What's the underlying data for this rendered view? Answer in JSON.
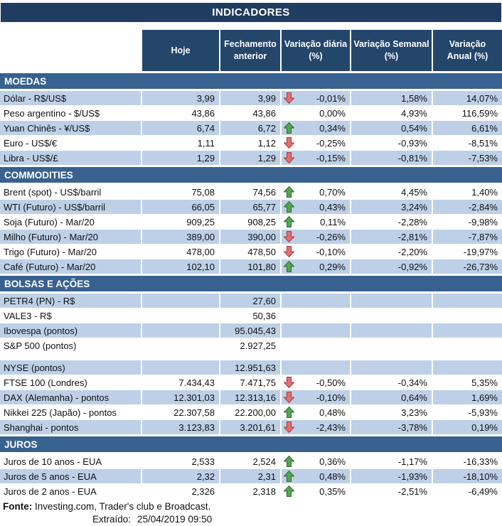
{
  "chart_data": {
    "type": "table",
    "title": "INDICADORES",
    "columns": [
      [
        "Hoje"
      ],
      [
        "Fechamento",
        "anterior"
      ],
      [
        "Variação diária",
        "(%)"
      ],
      [
        "Variação Semanal",
        "(%)"
      ],
      [
        "Variação",
        "Anual (%)"
      ]
    ],
    "sections": [
      {
        "name": "MOEDAS",
        "rows": [
          {
            "label": "Dólar - R$/US$",
            "hoje": "3,99",
            "fechamento": "3,99",
            "arrow": "down",
            "var_diaria": "-0,01%",
            "var_semanal": "1,58%",
            "var_anual": "14,07%",
            "shaded": true
          },
          {
            "label": "Peso argentino - $/US$",
            "hoje": "43,86",
            "fechamento": "43,86",
            "arrow": null,
            "var_diaria": "0,00%",
            "var_semanal": "4,93%",
            "var_anual": "116,59%",
            "shaded": false
          },
          {
            "label": "Yuan Chinês - ¥/US$",
            "hoje": "6,74",
            "fechamento": "6,72",
            "arrow": "up",
            "var_diaria": "0,34%",
            "var_semanal": "0,54%",
            "var_anual": "6,61%",
            "shaded": true
          },
          {
            "label": "Euro - US$/€",
            "hoje": "1,11",
            "fechamento": "1,12",
            "arrow": "down",
            "var_diaria": "-0,25%",
            "var_semanal": "-0,93%",
            "var_anual": "-8,51%",
            "shaded": false
          },
          {
            "label": "Libra - US$/£",
            "hoje": "1,29",
            "fechamento": "1,29",
            "arrow": "down",
            "var_diaria": "-0,15%",
            "var_semanal": "-0,81%",
            "var_anual": "-7,53%",
            "shaded": true
          }
        ]
      },
      {
        "name": "COMMODITIES",
        "rows": [
          {
            "label": "Brent (spot) - US$/barril",
            "hoje": "75,08",
            "fechamento": "74,56",
            "arrow": "up",
            "var_diaria": "0,70%",
            "var_semanal": "4,45%",
            "var_anual": "1,40%",
            "shaded": false
          },
          {
            "label": "WTI (Futuro) - US$/barril",
            "hoje": "66,05",
            "fechamento": "65,77",
            "arrow": "up",
            "var_diaria": "0,43%",
            "var_semanal": "3,24%",
            "var_anual": "-2,84%",
            "shaded": true
          },
          {
            "label": "Soja (Futuro) - Mar/20",
            "hoje": "909,25",
            "fechamento": "908,25",
            "arrow": "up",
            "var_diaria": "0,11%",
            "var_semanal": "-2,28%",
            "var_anual": "-9,98%",
            "shaded": false
          },
          {
            "label": "Milho (Futuro) - Mar/20",
            "hoje": "389,00",
            "fechamento": "390,00",
            "arrow": "down",
            "var_diaria": "-0,26%",
            "var_semanal": "-2,81%",
            "var_anual": "-7,87%",
            "shaded": true
          },
          {
            "label": "Trigo (Futuro) - Mar/20",
            "hoje": "478,00",
            "fechamento": "478,50",
            "arrow": "down",
            "var_diaria": "-0,10%",
            "var_semanal": "-2,20%",
            "var_anual": "-19,97%",
            "shaded": false
          },
          {
            "label": "Café (Futuro) - Mar/20",
            "hoje": "102,10",
            "fechamento": "101,80",
            "arrow": "up",
            "var_diaria": "0,29%",
            "var_semanal": "-0,92%",
            "var_anual": "-26,73%",
            "shaded": true
          }
        ]
      },
      {
        "name": "BOLSAS E AÇÕES",
        "rows": [
          {
            "label": "PETR4 (PN) - R$",
            "hoje": "",
            "fechamento": "27,60",
            "arrow": null,
            "var_diaria": "",
            "var_semanal": "",
            "var_anual": "",
            "shaded": true
          },
          {
            "label": "VALE3 - R$",
            "hoje": "",
            "fechamento": "50,36",
            "arrow": null,
            "var_diaria": "",
            "var_semanal": "",
            "var_anual": "",
            "shaded": false
          },
          {
            "label": "Ibovespa (pontos)",
            "hoje": "",
            "fechamento": "95.045,43",
            "arrow": null,
            "var_diaria": "",
            "var_semanal": "",
            "var_anual": "",
            "shaded": true
          },
          {
            "label": "S&P 500 (pontos)",
            "hoje": "",
            "fechamento": "2.927,25",
            "arrow": null,
            "var_diaria": "",
            "var_semanal": "",
            "var_anual": "",
            "shaded": false
          },
          {
            "spacer": true
          },
          {
            "label": "NYSE (pontos)",
            "hoje": "",
            "fechamento": "12.951,63",
            "arrow": null,
            "var_diaria": "",
            "var_semanal": "",
            "var_anual": "",
            "shaded": true
          },
          {
            "label": "FTSE 100 (Londres)",
            "hoje": "7.434,43",
            "fechamento": "7.471,75",
            "arrow": "down",
            "var_diaria": "-0,50%",
            "var_semanal": "-0,34%",
            "var_anual": "5,35%",
            "shaded": false
          },
          {
            "label": "DAX (Alemanha) - pontos",
            "hoje": "12.301,03",
            "fechamento": "12.313,16",
            "arrow": "down",
            "var_diaria": "-0,10%",
            "var_semanal": "0,64%",
            "var_anual": "1,69%",
            "shaded": true
          },
          {
            "label": "Nikkei 225 (Japão) - pontos",
            "hoje": "22.307,58",
            "fechamento": "22.200,00",
            "arrow": "up",
            "var_diaria": "0,48%",
            "var_semanal": "3,23%",
            "var_anual": "-5,93%",
            "shaded": false
          },
          {
            "label": "Shanghai - pontos",
            "hoje": "3.123,83",
            "fechamento": "3.201,61",
            "arrow": "down",
            "var_diaria": "-2,43%",
            "var_semanal": "-3,78%",
            "var_anual": "0,19%",
            "shaded": true
          }
        ]
      },
      {
        "name": "JUROS",
        "rows": [
          {
            "label": "Juros de 10 anos - EUA",
            "hoje": "2,533",
            "fechamento": "2,524",
            "arrow": "up",
            "var_diaria": "0,36%",
            "var_semanal": "-1,17%",
            "var_anual": "-16,33%",
            "shaded": false
          },
          {
            "label": "Juros de 5 anos - EUA",
            "hoje": "2,32",
            "fechamento": "2,31",
            "arrow": "up",
            "var_diaria": "0,48%",
            "var_semanal": "-1,93%",
            "var_anual": "-18,10%",
            "shaded": true
          },
          {
            "label": "Juros de 2 anos - EUA",
            "hoje": "2,326",
            "fechamento": "2,318",
            "arrow": "up",
            "var_diaria": "0,35%",
            "var_semanal": "-2,51%",
            "var_anual": "-6,49%",
            "shaded": false
          }
        ]
      }
    ]
  },
  "footer": {
    "source_label": "Fonte:",
    "source_text": " Investing.com, Trader's club e Broadcast.",
    "extracted_label": "Extraído:",
    "extracted_value": "25/04/2019 09:50"
  },
  "colors": {
    "title_bar": "#1f3c61",
    "header_bg": "#24466b",
    "section_bg": "#38618f",
    "row_shaded": "#bdd0e7",
    "up_green": "#55a455",
    "down_red": "#e2706e"
  }
}
